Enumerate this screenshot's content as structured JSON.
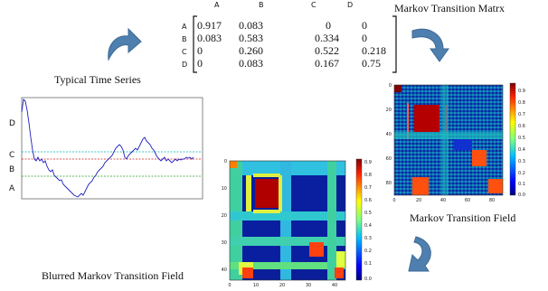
{
  "titles": {
    "time_series": "Typical Time Series",
    "matrix": "Markov Transition Matrx",
    "mtf": "Markov Transition Field",
    "blurred": "Blurred Markov Transition Field"
  },
  "matrix": {
    "col_labels": [
      "A",
      "B",
      "C",
      "D"
    ],
    "row_labels": [
      "A",
      "B",
      "C",
      "D"
    ],
    "rows": [
      [
        "0.917",
        "0.083",
        "0",
        "0"
      ],
      [
        "0.083",
        "0.583",
        "0.334",
        "0"
      ],
      [
        "0",
        "0.260",
        "0.522",
        "0.218"
      ],
      [
        "0",
        "0.083",
        "0.167",
        "0.75"
      ]
    ]
  },
  "level_labels": [
    "D",
    "C",
    "B",
    "A"
  ],
  "mtf_ticks": {
    "x": [
      "0",
      "20",
      "40",
      "60",
      "80"
    ],
    "y": [
      "0",
      "20",
      "40",
      "60",
      "80"
    ],
    "colorbar": [
      "0.9",
      "0.8",
      "0.7",
      "0.6",
      "0.5",
      "0.4",
      "0.3",
      "0.2",
      "0.1",
      "0.0"
    ]
  },
  "blurred_ticks": {
    "x": [
      "0",
      "10",
      "20",
      "30",
      "40"
    ],
    "y": [
      "0",
      "10",
      "20",
      "30",
      "40"
    ],
    "colorbar": [
      "0.9",
      "0.8",
      "0.7",
      "0.6",
      "0.5",
      "0.4",
      "0.3",
      "0.2",
      "0.1",
      "0.0"
    ]
  },
  "colors": {
    "arrow": "#4f7fae",
    "series": "#2020c0",
    "level_d": "#00b0b0",
    "level_c": "#d02020",
    "level_b": "#20a020"
  },
  "icons": [
    "curved-arrow-icon"
  ]
}
